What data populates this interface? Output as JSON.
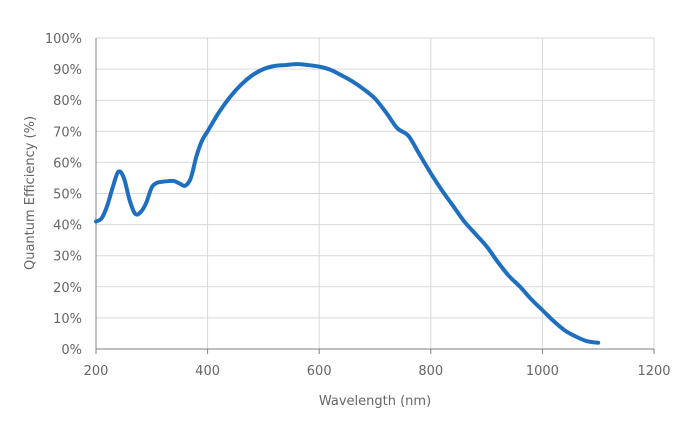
{
  "chart_data": {
    "type": "line",
    "title": "",
    "xlabel": "Wavelength (nm)",
    "ylabel": "Quantum Efficiency (%)",
    "xlim": [
      200,
      1200
    ],
    "ylim": [
      0,
      100
    ],
    "x_ticks": [
      200,
      400,
      600,
      800,
      1000,
      1200
    ],
    "y_ticks": [
      0,
      10,
      20,
      30,
      40,
      50,
      60,
      70,
      80,
      90,
      100
    ],
    "x_tick_labels": [
      "200",
      "400",
      "600",
      "800",
      "1000",
      "1200"
    ],
    "y_tick_labels": [
      "0%",
      "10%",
      "20%",
      "30%",
      "40%",
      "50%",
      "60%",
      "70%",
      "80%",
      "90%",
      "100%"
    ],
    "grid": true,
    "legend": false,
    "line_color": "#1f6fc0",
    "grid_color": "#d9d9d9",
    "series": [
      {
        "x": [
          200,
          210,
          220,
          230,
          240,
          250,
          260,
          270,
          280,
          290,
          300,
          310,
          320,
          330,
          340,
          350,
          360,
          370,
          380,
          390,
          400,
          420,
          440,
          460,
          480,
          500,
          520,
          540,
          560,
          580,
          600,
          620,
          640,
          660,
          680,
          700,
          720,
          740,
          760,
          780,
          800,
          820,
          840,
          860,
          880,
          900,
          920,
          940,
          960,
          980,
          1000,
          1020,
          1040,
          1060,
          1080,
          1100
        ],
        "y": [
          41,
          42,
          46,
          52,
          57,
          55,
          48,
          43.5,
          44,
          47,
          52,
          53.5,
          53.8,
          54,
          54,
          53.2,
          52.5,
          55,
          62,
          67,
          70,
          76,
          81,
          85,
          88,
          90,
          91,
          91.3,
          91.6,
          91.3,
          90.8,
          89.8,
          88,
          86,
          83.5,
          80.5,
          76,
          71,
          68.5,
          62.5,
          56.5,
          51,
          46,
          41,
          37,
          33,
          28,
          23.5,
          20,
          16,
          12.5,
          9,
          6,
          4,
          2.5,
          2
        ]
      }
    ]
  }
}
